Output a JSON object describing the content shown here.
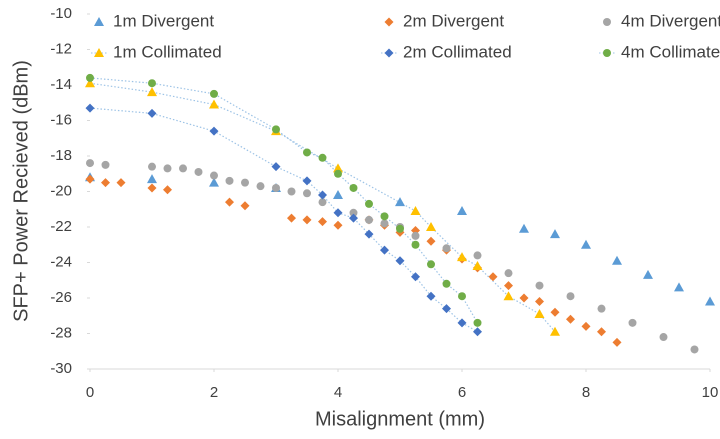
{
  "chart_data": {
    "type": "scatter",
    "x_label": "Misalignment (mm)",
    "y_label": "SFP+ Power Recieved (dBm)",
    "xlim": [
      0,
      10
    ],
    "xticks": [
      0,
      2,
      4,
      6,
      8,
      10
    ],
    "ylim": [
      -30,
      -10
    ],
    "yticks": [
      -30,
      -28,
      -26,
      -24,
      -22,
      -20,
      -18,
      -16,
      -14,
      -12,
      -10
    ],
    "line_color": "#9dc3e6",
    "series": [
      {
        "name": "1m Divergent",
        "color": "#5b9bd5",
        "marker": "triangle",
        "line": "none",
        "x": [
          0,
          1,
          2,
          3,
          4,
          5,
          6,
          7,
          7.5,
          8,
          8.5,
          9,
          9.5,
          10
        ],
        "values": [
          -19.2,
          -19.3,
          -19.5,
          -19.8,
          -20.2,
          -20.6,
          -21.1,
          -22.1,
          -22.4,
          -23.0,
          -23.9,
          -24.7,
          -25.4,
          -26.2
        ]
      },
      {
        "name": "2m Divergent",
        "color": "#ed7d31",
        "marker": "diamond",
        "line": "none",
        "x": [
          0,
          0.25,
          0.5,
          1,
          1.25,
          2.25,
          2.5,
          3.25,
          3.5,
          3.75,
          4,
          4.5,
          4.75,
          5,
          5.25,
          5.5,
          5.75,
          6,
          6.25,
          6.5,
          6.75,
          7,
          7.25,
          7.5,
          7.75,
          8,
          8.25,
          8.5
        ],
        "values": [
          -19.3,
          -19.5,
          -19.5,
          -19.8,
          -19.9,
          -20.6,
          -20.8,
          -21.5,
          -21.6,
          -21.7,
          -21.9,
          -21.6,
          -21.9,
          -22.3,
          -22.2,
          -22.8,
          -23.3,
          -23.8,
          -24.3,
          -24.8,
          -25.3,
          -26.0,
          -26.2,
          -26.8,
          -27.2,
          -27.6,
          -27.9,
          -28.5
        ]
      },
      {
        "name": "4m Divergent",
        "color": "#a5a5a5",
        "marker": "circle",
        "line": "none",
        "x": [
          0,
          0.25,
          1,
          1.25,
          1.5,
          1.75,
          2,
          2.25,
          2.5,
          2.75,
          3,
          3.25,
          3.5,
          3.75,
          4.25,
          4.5,
          4.75,
          5,
          5.25,
          5.75,
          6.25,
          6.75,
          7.25,
          7.75,
          8.25,
          8.75,
          9.25,
          9.75
        ],
        "values": [
          -18.4,
          -18.5,
          -18.6,
          -18.7,
          -18.7,
          -18.9,
          -19.1,
          -19.4,
          -19.5,
          -19.7,
          -19.8,
          -20.0,
          -20.1,
          -20.6,
          -21.2,
          -21.6,
          -21.8,
          -22.0,
          -22.5,
          -23.2,
          -23.6,
          -24.6,
          -25.3,
          -25.9,
          -26.6,
          -27.4,
          -28.2,
          -28.9
        ]
      },
      {
        "name": "1m Collimated",
        "color": "#ffc000",
        "marker": "triangle",
        "line": "dotted",
        "x": [
          0,
          1,
          2,
          3,
          4,
          5.25,
          5.5,
          6,
          6.25,
          6.75,
          7.25,
          7.5
        ],
        "values": [
          -13.9,
          -14.4,
          -15.1,
          -16.6,
          -18.7,
          -21.1,
          -22.0,
          -23.7,
          -24.2,
          -25.9,
          -26.9,
          -27.9
        ]
      },
      {
        "name": "2m Collimated",
        "color": "#4472c4",
        "marker": "diamond",
        "line": "dotted",
        "x": [
          0,
          1,
          2,
          3,
          3.5,
          3.75,
          4,
          4.25,
          4.5,
          4.75,
          5,
          5.25,
          5.5,
          5.75,
          6,
          6.25
        ],
        "values": [
          -15.3,
          -15.6,
          -16.6,
          -18.6,
          -19.4,
          -20.2,
          -21.2,
          -21.5,
          -22.4,
          -23.3,
          -23.9,
          -24.8,
          -25.9,
          -26.6,
          -27.4,
          -27.9
        ]
      },
      {
        "name": "4m Collimated",
        "color": "#70ad47",
        "marker": "circle",
        "line": "dotted",
        "x": [
          0,
          1,
          2,
          3,
          3.5,
          3.75,
          4,
          4.25,
          4.5,
          4.75,
          5,
          5.25,
          5.5,
          5.75,
          6,
          6.25
        ],
        "values": [
          -13.6,
          -13.9,
          -14.5,
          -16.5,
          -17.8,
          -18.1,
          -19.0,
          -19.8,
          -20.7,
          -21.4,
          -22.1,
          -23.0,
          -24.1,
          -25.2,
          -25.9,
          -27.4
        ]
      }
    ]
  }
}
